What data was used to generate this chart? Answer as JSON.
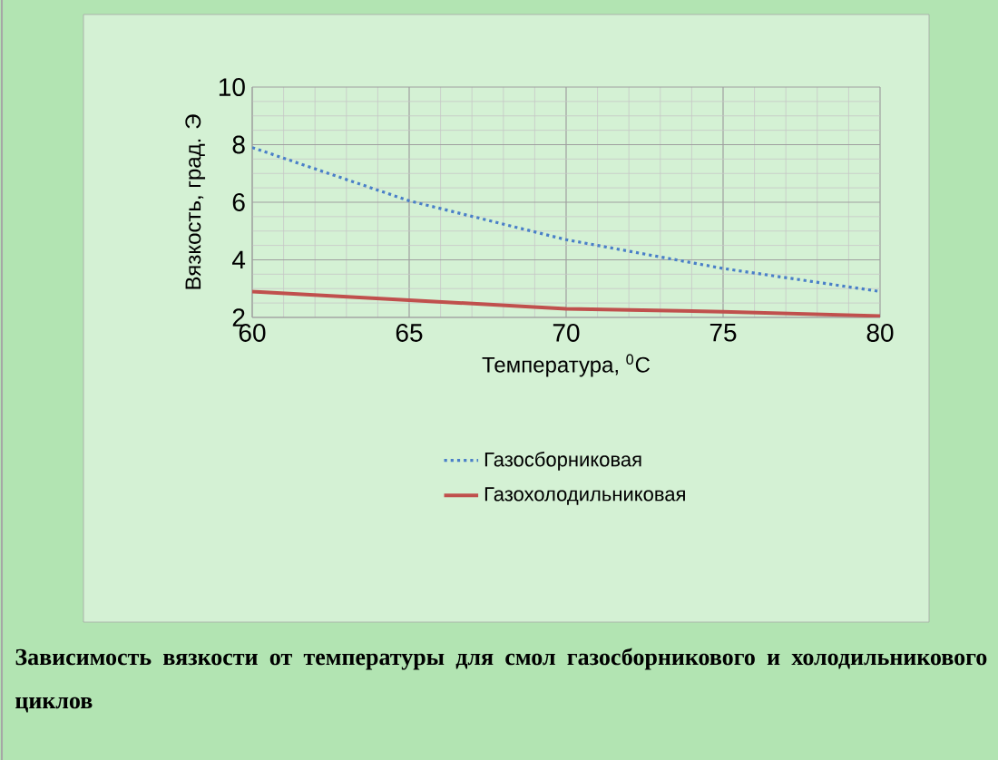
{
  "chart_data": {
    "type": "line",
    "title": "Зависимость вязкости от температуры для смол газосборникового и холодильникового циклов",
    "xlabel": "Температура, $^{0}$C",
    "ylabel": "Вязкость, град. Э",
    "x": [
      60,
      65,
      70,
      75,
      80
    ],
    "series": [
      {
        "name": "Газосборниковая",
        "color": "#4a7fc8",
        "line_style": "dotted",
        "values": [
          7.9,
          6.05,
          4.7,
          3.7,
          2.9
        ]
      },
      {
        "name": "Газохолодильниковая",
        "color": "#c0504d",
        "line_style": "solid",
        "values": [
          2.9,
          2.6,
          2.3,
          2.2,
          2.05
        ]
      }
    ],
    "xlim": [
      60,
      80
    ],
    "xticks": [
      60,
      65,
      70,
      75,
      80
    ],
    "ylim": [
      2,
      10
    ],
    "yticks": [
      2,
      4,
      6,
      8,
      10
    ],
    "grid": true,
    "legend": "bottom"
  }
}
